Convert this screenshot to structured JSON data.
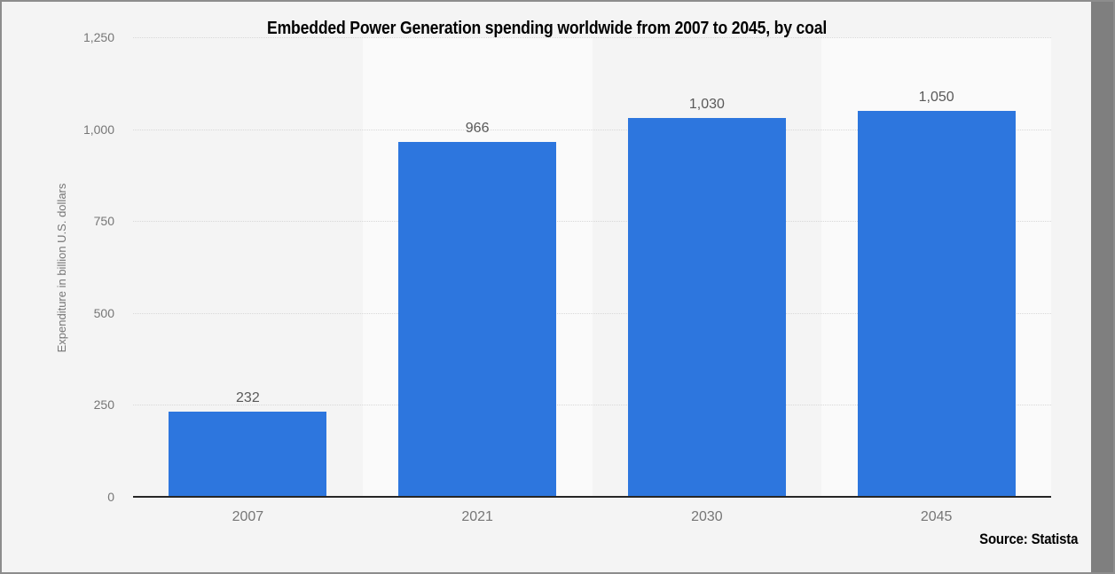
{
  "chart_data": {
    "type": "bar",
    "title": "Embedded Power Generation spending worldwide from 2007 to 2045, by coal",
    "categories": [
      "2007",
      "2021",
      "2030",
      "2045"
    ],
    "values": [
      232,
      966,
      1030,
      1050
    ],
    "value_labels": [
      "232",
      "966",
      "1,030",
      "1,050"
    ],
    "xlabel": "",
    "ylabel": "Expenditure in billion U.S. dollars",
    "ylim": [
      0,
      1250
    ],
    "yticks": [
      0,
      250,
      500,
      750,
      1000,
      1250
    ],
    "ytick_labels": [
      "0",
      "250",
      "500",
      "750",
      "1,000",
      "1,250"
    ],
    "grid": "horizontal-dotted",
    "legend_position": "none",
    "source": "Source: Statista",
    "colors": {
      "bar": "#2d76de",
      "background": "#f4f4f4",
      "alt_band": "#fafafa",
      "gridline": "#d8d8d8",
      "axis_line": "#262626",
      "tick_text": "#767676",
      "value_label_text": "#595959",
      "title_text": "#000000",
      "frame_border": "#8d8d8d",
      "right_strip": "#7f7f7f"
    }
  }
}
